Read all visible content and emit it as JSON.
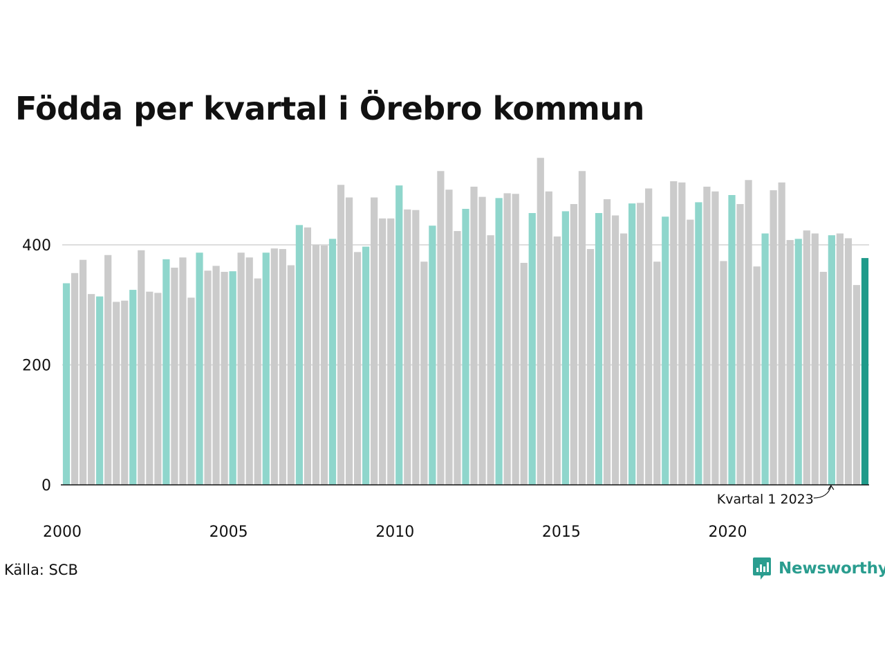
{
  "title": "Födda per kvartal i Örebro kommun",
  "source": "Källa: SCB",
  "brand": {
    "name": "Newsworthy",
    "icon": "newsworthy-logo-icon",
    "color": "#2a9d8f"
  },
  "colors": {
    "q1": "#8fd6cc",
    "other": "#cbcbcb",
    "latest": "#1f9a8a",
    "grid": "#dddddd",
    "axis": "#111111"
  },
  "chart_data": {
    "type": "bar",
    "title": "Födda per kvartal i Örebro kommun",
    "xlabel": "",
    "ylabel": "",
    "ylim": [
      0,
      560
    ],
    "yticks": [
      0,
      200,
      400
    ],
    "xticks": [
      "2000",
      "2005",
      "2010",
      "2015",
      "2020"
    ],
    "grid": "horizontal",
    "highlight_rule": "Kvartal 1 highlighted",
    "annotation": {
      "text": "Kvartal 1 2023",
      "target": "2023 K1"
    },
    "categories": [
      "2000 K1",
      "2000 K2",
      "2000 K3",
      "2000 K4",
      "2001 K1",
      "2001 K2",
      "2001 K3",
      "2001 K4",
      "2002 K1",
      "2002 K2",
      "2002 K3",
      "2002 K4",
      "2003 K1",
      "2003 K2",
      "2003 K3",
      "2003 K4",
      "2004 K1",
      "2004 K2",
      "2004 K3",
      "2004 K4",
      "2005 K1",
      "2005 K2",
      "2005 K3",
      "2005 K4",
      "2006 K1",
      "2006 K2",
      "2006 K3",
      "2006 K4",
      "2007 K1",
      "2007 K2",
      "2007 K3",
      "2007 K4",
      "2008 K1",
      "2008 K2",
      "2008 K3",
      "2008 K4",
      "2009 K1",
      "2009 K2",
      "2009 K3",
      "2009 K4",
      "2010 K1",
      "2010 K2",
      "2010 K3",
      "2010 K4",
      "2011 K1",
      "2011 K2",
      "2011 K3",
      "2011 K4",
      "2012 K1",
      "2012 K2",
      "2012 K3",
      "2012 K4",
      "2013 K1",
      "2013 K2",
      "2013 K3",
      "2013 K4",
      "2014 K1",
      "2014 K2",
      "2014 K3",
      "2014 K4",
      "2015 K1",
      "2015 K2",
      "2015 K3",
      "2015 K4",
      "2016 K1",
      "2016 K2",
      "2016 K3",
      "2016 K4",
      "2017 K1",
      "2017 K2",
      "2017 K3",
      "2017 K4",
      "2018 K1",
      "2018 K2",
      "2018 K3",
      "2018 K4",
      "2019 K1",
      "2019 K2",
      "2019 K3",
      "2019 K4",
      "2020 K1",
      "2020 K2",
      "2020 K3",
      "2020 K4",
      "2021 K1",
      "2021 K2",
      "2021 K3",
      "2021 K4",
      "2022 K1",
      "2022 K2",
      "2022 K3",
      "2022 K4",
      "2023 K1",
      "2023 K2",
      "2023 K3",
      "2023 K4",
      "2024 K1"
    ],
    "values": [
      336,
      353,
      375,
      318,
      314,
      383,
      305,
      307,
      325,
      391,
      322,
      320,
      376,
      362,
      379,
      312,
      387,
      357,
      365,
      355,
      356,
      387,
      379,
      344,
      387,
      394,
      393,
      366,
      433,
      429,
      400,
      399,
      410,
      500,
      479,
      388,
      397,
      479,
      444,
      444,
      499,
      459,
      458,
      372,
      432,
      523,
      492,
      423,
      460,
      497,
      480,
      416,
      478,
      486,
      485,
      370,
      453,
      545,
      489,
      414,
      456,
      468,
      523,
      393,
      453,
      476,
      449,
      419,
      469,
      470,
      494,
      372,
      447,
      506,
      504,
      442,
      471,
      497,
      489,
      373,
      483,
      468,
      508,
      364,
      419,
      491,
      504,
      408,
      410,
      424,
      419,
      355,
      416,
      419,
      411,
      333,
      378
    ]
  }
}
